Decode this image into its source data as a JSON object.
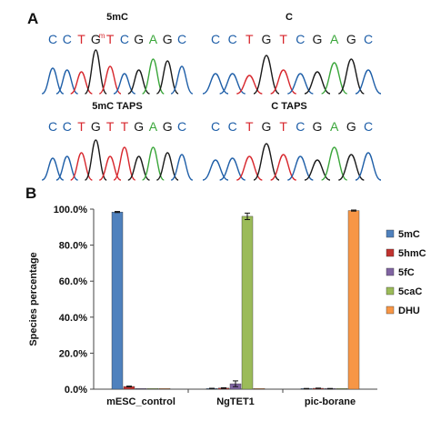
{
  "figure": {
    "panel_a_letter": "A",
    "panel_b_letter": "B"
  },
  "panel_a": {
    "traces": [
      {
        "title": "5mC",
        "bases": [
          {
            "b": "C",
            "color": "#1f5fa8"
          },
          {
            "b": "C",
            "color": "#1f5fa8"
          },
          {
            "b": "T",
            "color": "#d7262c"
          },
          {
            "b": "G",
            "color": "#1a1a1a"
          },
          {
            "b": "T",
            "color": "#d7262c",
            "sup": "m"
          },
          {
            "b": "C",
            "color": "#1f5fa8"
          },
          {
            "b": "G",
            "color": "#1a1a1a"
          },
          {
            "b": "A",
            "color": "#3aa63a"
          },
          {
            "b": "G",
            "color": "#1a1a1a"
          },
          {
            "b": "C",
            "color": "#1f5fa8"
          }
        ]
      },
      {
        "title": "C",
        "bases": [
          {
            "b": "C",
            "color": "#1f5fa8"
          },
          {
            "b": "C",
            "color": "#1f5fa8"
          },
          {
            "b": "T",
            "color": "#d7262c"
          },
          {
            "b": "G",
            "color": "#1a1a1a"
          },
          {
            "b": "T",
            "color": "#d7262c"
          },
          {
            "b": "C",
            "color": "#1f5fa8"
          },
          {
            "b": "G",
            "color": "#1a1a1a"
          },
          {
            "b": "A",
            "color": "#3aa63a"
          },
          {
            "b": "G",
            "color": "#1a1a1a"
          },
          {
            "b": "C",
            "color": "#1f5fa8"
          }
        ]
      },
      {
        "title": "5mC TAPS",
        "bases": [
          {
            "b": "C",
            "color": "#1f5fa8"
          },
          {
            "b": "C",
            "color": "#1f5fa8"
          },
          {
            "b": "T",
            "color": "#d7262c"
          },
          {
            "b": "G",
            "color": "#1a1a1a"
          },
          {
            "b": "T",
            "color": "#d7262c"
          },
          {
            "b": "T",
            "color": "#d7262c"
          },
          {
            "b": "G",
            "color": "#1a1a1a"
          },
          {
            "b": "A",
            "color": "#3aa63a"
          },
          {
            "b": "G",
            "color": "#1a1a1a"
          },
          {
            "b": "C",
            "color": "#1f5fa8"
          }
        ]
      },
      {
        "title": "C TAPS",
        "bases": [
          {
            "b": "C",
            "color": "#1f5fa8"
          },
          {
            "b": "C",
            "color": "#1f5fa8"
          },
          {
            "b": "T",
            "color": "#d7262c"
          },
          {
            "b": "G",
            "color": "#1a1a1a"
          },
          {
            "b": "T",
            "color": "#d7262c"
          },
          {
            "b": "C",
            "color": "#1f5fa8"
          },
          {
            "b": "G",
            "color": "#1a1a1a"
          },
          {
            "b": "A",
            "color": "#3aa63a"
          },
          {
            "b": "G",
            "color": "#1a1a1a"
          },
          {
            "b": "C",
            "color": "#1f5fa8"
          }
        ]
      }
    ]
  },
  "chart_data": {
    "type": "bar",
    "title": "",
    "xlabel": "",
    "ylabel": "Species percentage",
    "ylim": [
      0,
      100
    ],
    "yticks": [
      "0.0%",
      "20.0%",
      "40.0%",
      "60.0%",
      "80.0%",
      "100.0%"
    ],
    "categories": [
      "mESC_control",
      "NgTET1",
      "pic-borane"
    ],
    "grid": false,
    "legend_position": "right",
    "series": [
      {
        "name": "5mC",
        "color": "#4f81bd",
        "values": [
          98.4,
          0.4,
          0.3
        ],
        "errors": [
          0.3,
          0.1,
          0.1
        ]
      },
      {
        "name": "5hmC",
        "color": "#c0322f",
        "values": [
          1.5,
          0.6,
          0.5
        ],
        "errors": [
          0.2,
          0.2,
          0.1
        ]
      },
      {
        "name": "5fC",
        "color": "#8064a2",
        "values": [
          0.1,
          3.0,
          0.3
        ],
        "errors": [
          0.0,
          1.6,
          0.1
        ]
      },
      {
        "name": "5caC",
        "color": "#9bbb59",
        "values": [
          0.0,
          96.0,
          0.0
        ],
        "errors": [
          0.0,
          1.8,
          0.0
        ]
      },
      {
        "name": "DHU",
        "color": "#f79646",
        "values": [
          0.0,
          0.0,
          99.2
        ],
        "errors": [
          0.0,
          0.0,
          0.3
        ]
      }
    ]
  }
}
